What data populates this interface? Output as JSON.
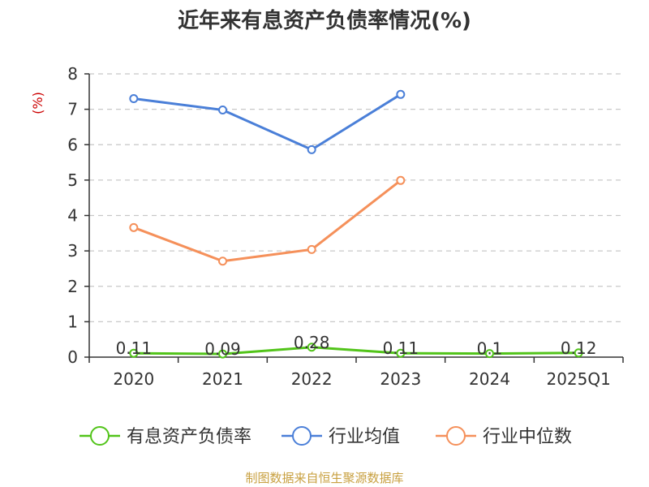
{
  "chart_data": {
    "type": "line",
    "title": "近年来有息资产负债率情况(%)",
    "ylabel": "(%)",
    "categories": [
      "2020",
      "2021",
      "2022",
      "2023",
      "2024",
      "2025Q1"
    ],
    "ylim": [
      0,
      8
    ],
    "yticks": [
      "0",
      "1",
      "2",
      "3",
      "4",
      "5",
      "6",
      "7",
      "8"
    ],
    "grid": true,
    "legend_position": "bottom",
    "series": [
      {
        "name": "有息资产负债率",
        "color": "#52c41a",
        "values": [
          0.11,
          0.09,
          0.28,
          0.11,
          0.1,
          0.12
        ],
        "labels": [
          "0.11",
          "0.09",
          "0.28",
          "0.11",
          "0.1",
          "0.12"
        ]
      },
      {
        "name": "行业均值",
        "color": "#4a7fd8",
        "values": [
          7.3,
          6.98,
          5.86,
          7.42,
          null,
          null
        ]
      },
      {
        "name": "行业中位数",
        "color": "#f5905a",
        "values": [
          3.66,
          2.71,
          3.04,
          4.99,
          null,
          null
        ]
      }
    ]
  },
  "footer": {
    "source": "制图数据来自恒生聚源数据库"
  }
}
